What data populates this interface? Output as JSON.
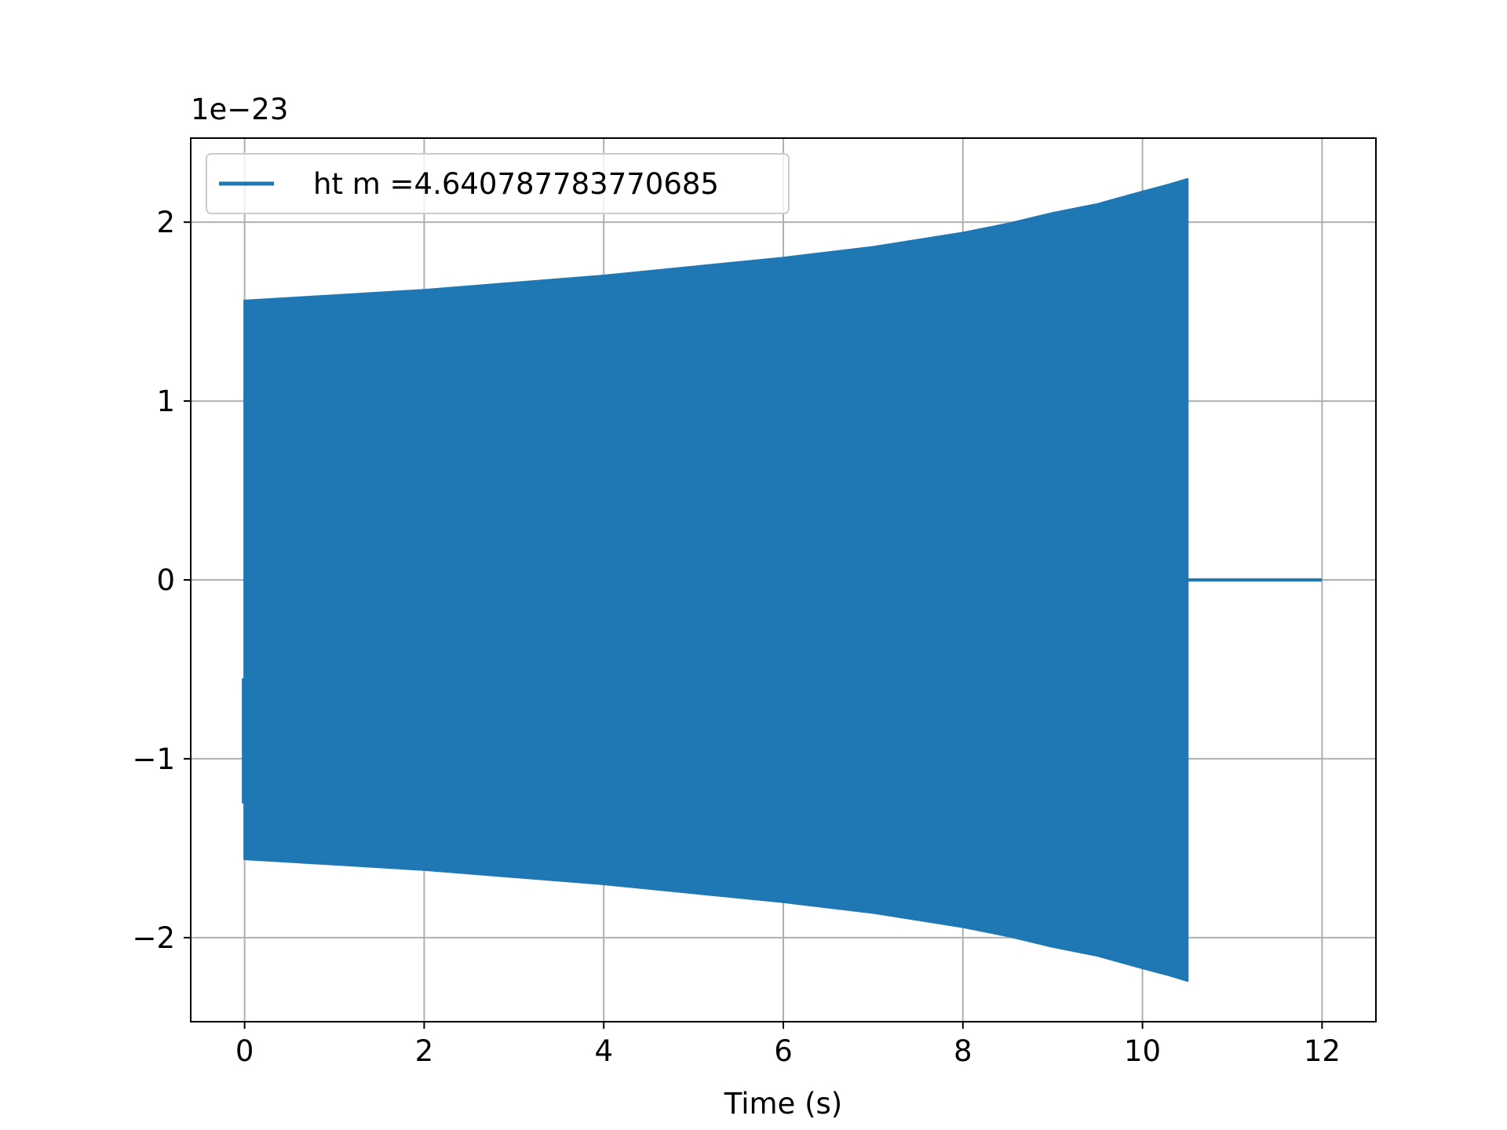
{
  "chart_data": {
    "type": "line",
    "title": "",
    "xlabel": "Time (s)",
    "ylabel": "",
    "y_offset_label": "1e−23",
    "xlim": [
      -0.6,
      12.6
    ],
    "ylim": [
      -2.47,
      2.47
    ],
    "x_ticks": [
      0,
      2,
      4,
      6,
      8,
      10,
      12
    ],
    "x_tick_labels": [
      "0",
      "2",
      "4",
      "6",
      "8",
      "10",
      "12"
    ],
    "y_ticks": [
      -2,
      -1,
      0,
      1,
      2
    ],
    "y_tick_labels": [
      "−2",
      "−1",
      "0",
      "1",
      "2"
    ],
    "grid": true,
    "legend_position": "upper-left",
    "line_color": "#1f77b4",
    "series": [
      {
        "name": "ht m =4.640787783770685",
        "description": "densely oscillating chirp signal; envelope grows from t=0 to merger at t=10.5, then zero until t=12",
        "envelope": {
          "t": [
            0.0,
            1.0,
            2.0,
            3.0,
            4.0,
            5.0,
            6.0,
            7.0,
            8.0,
            8.5,
            9.0,
            9.5,
            10.0,
            10.3,
            10.5
          ],
          "upper": [
            1.56,
            1.59,
            1.62,
            1.66,
            1.7,
            1.75,
            1.8,
            1.86,
            1.94,
            1.99,
            2.05,
            2.1,
            2.17,
            2.21,
            2.24
          ],
          "lower": [
            -1.56,
            -1.59,
            -1.62,
            -1.66,
            -1.7,
            -1.75,
            -1.8,
            -1.86,
            -1.94,
            -1.99,
            -2.05,
            -2.1,
            -2.17,
            -2.21,
            -2.24
          ]
        },
        "signal_end_t": 10.5,
        "zero_segment": {
          "t": [
            10.5,
            12.0
          ],
          "y": [
            0,
            0
          ]
        }
      }
    ]
  }
}
